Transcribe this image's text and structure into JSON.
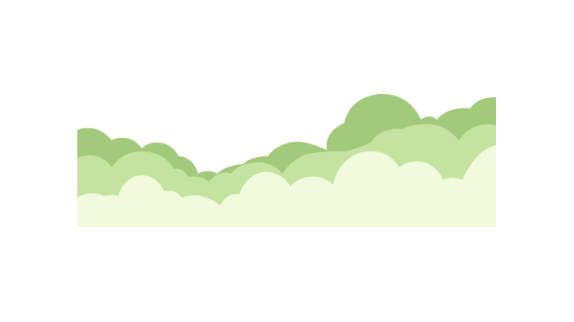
{
  "scene": {
    "background": "#ffffff",
    "layers": [
      {
        "name": "back-bushes",
        "color": "#a3c97a"
      },
      {
        "name": "middle-bushes",
        "color": "#c5e3a0"
      },
      {
        "name": "front-bushes",
        "color": "#f1fadd"
      }
    ]
  }
}
